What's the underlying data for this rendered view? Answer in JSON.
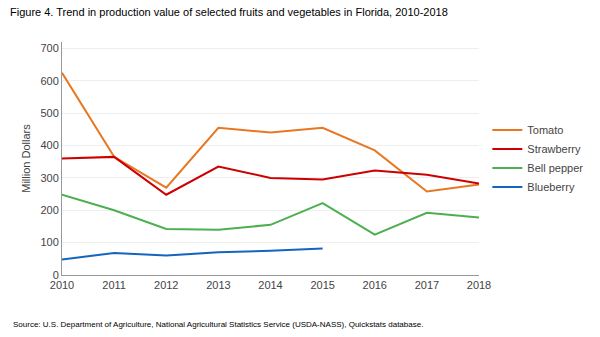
{
  "chart_data": {
    "type": "line",
    "title": "Figure 4. Trend in production value of selected fruits and vegetables in Florida, 2010-2018",
    "y_label": "Million Dollars",
    "annotations": [
      "Source: U.S. Department of Agriculture, National Agricultural Statistics Service (USDA-NASS), Quickstats database."
    ],
    "x": [
      2010,
      2011,
      2012,
      2013,
      2014,
      2015,
      2016,
      2017,
      2018
    ],
    "series": [
      {
        "name": "Tomato",
        "color": "#E87722",
        "values": [
          625,
          365,
          270,
          455,
          440,
          455,
          385,
          258,
          280
        ]
      },
      {
        "name": "Strawberry",
        "color": "#CC0000",
        "values": [
          360,
          365,
          248,
          335,
          300,
          295,
          323,
          310,
          283
        ]
      },
      {
        "name": "Bell pepper",
        "color": "#4CAF50",
        "values": [
          248,
          200,
          142,
          140,
          155,
          222,
          125,
          192,
          178
        ]
      },
      {
        "name": "Blueberry",
        "color": "#1565C0",
        "values": [
          48,
          68,
          60,
          70,
          75,
          82,
          null,
          null,
          null
        ]
      }
    ],
    "xlim": [
      2010,
      2018
    ],
    "xticks": [
      2010,
      2011,
      2012,
      2013,
      2014,
      2015,
      2016,
      2017,
      2018
    ],
    "ylim": [
      0,
      720
    ],
    "yticks": [
      0,
      100,
      200,
      300,
      400,
      500,
      600,
      700
    ],
    "grid": true,
    "legend": "right"
  }
}
